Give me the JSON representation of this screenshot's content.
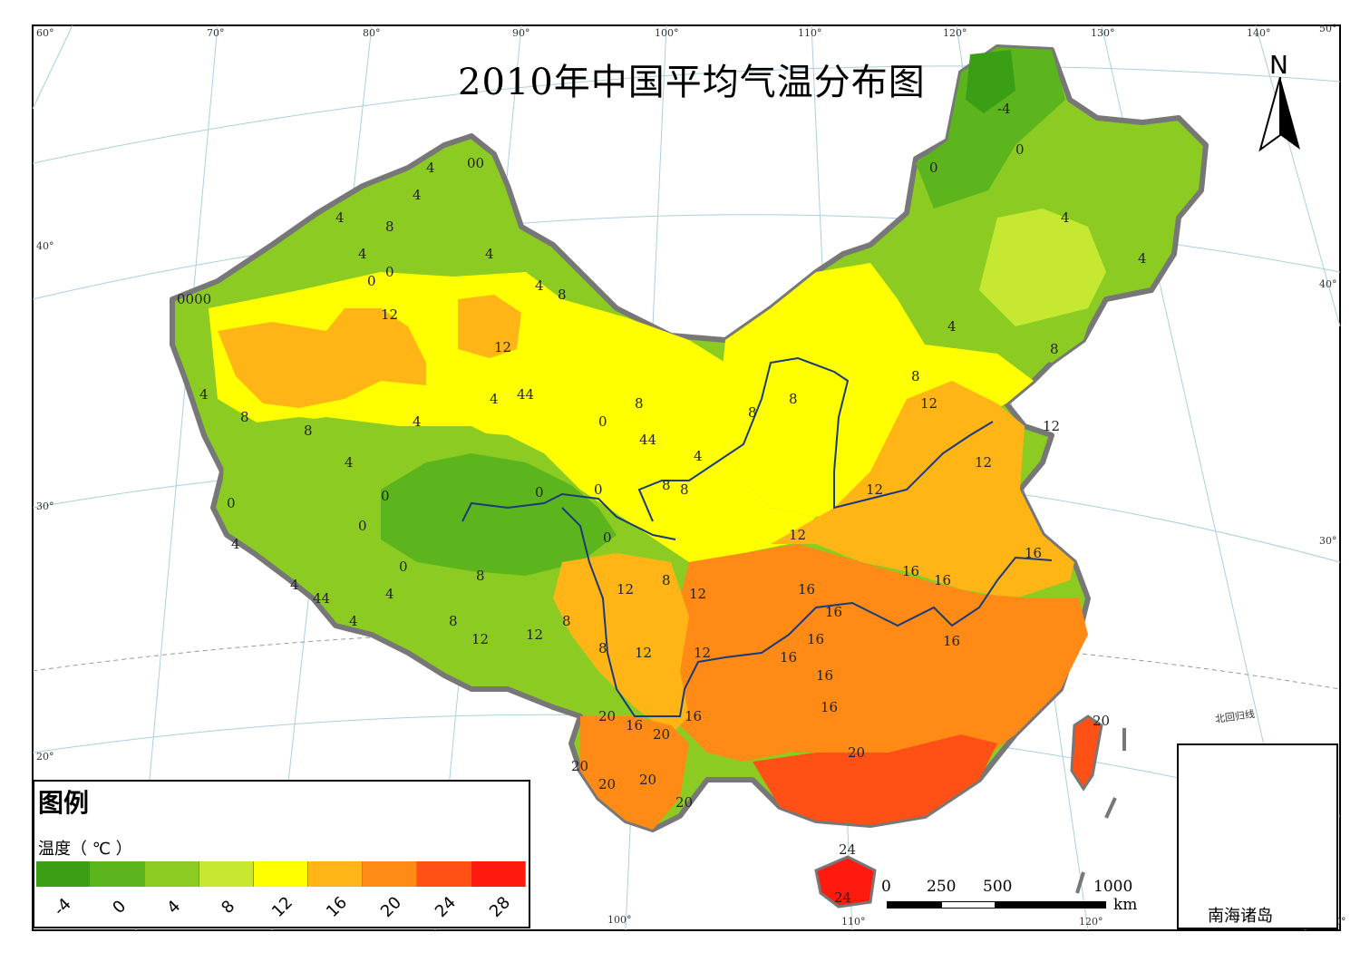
{
  "title": "2010年中国平均气温分布图",
  "north_label": "N",
  "legend": {
    "heading": "图例",
    "unit_label": "温度（ ℃ ）",
    "classes": [
      {
        "label": "-4",
        "color": "#3a9f14"
      },
      {
        "label": "0",
        "color": "#5cb51c"
      },
      {
        "label": "4",
        "color": "#8ccc22"
      },
      {
        "label": "8",
        "color": "#c6e831"
      },
      {
        "label": "12",
        "color": "#ffff00"
      },
      {
        "label": "16",
        "color": "#ffb515"
      },
      {
        "label": "20",
        "color": "#ff8a15"
      },
      {
        "label": "24",
        "color": "#ff5015"
      },
      {
        "label": "28",
        "color": "#ff1a10"
      }
    ]
  },
  "scale_bar": {
    "labels": [
      "0",
      "250",
      "500",
      "1000"
    ],
    "unit": "km"
  },
  "inset_label": "南海诸岛",
  "tropic_label": "北回归线",
  "graticule": {
    "top_longitudes": [
      "60°",
      "70°",
      "80°",
      "90°",
      "100°",
      "110°",
      "120°",
      "130°",
      "140°"
    ],
    "bottom_longitudes": [
      "100°",
      "110°",
      "120°"
    ],
    "left_latitudes": [
      "40°",
      "30°",
      "20°"
    ],
    "right_latitudes": [
      "50°",
      "40°",
      "30°"
    ],
    "corner_bottom_right": "30°"
  },
  "contour_labels": [
    "-4",
    "0",
    "4",
    "8",
    "12",
    "16",
    "20",
    "24"
  ]
}
